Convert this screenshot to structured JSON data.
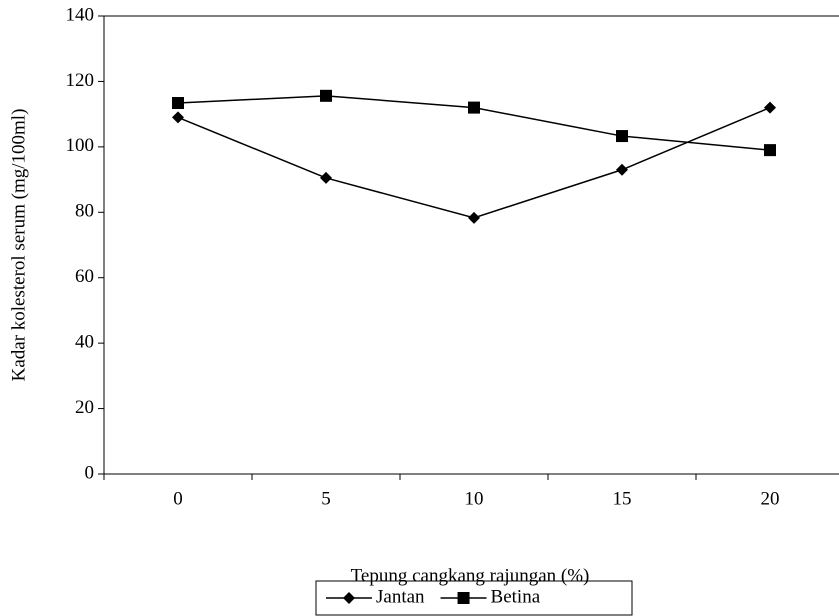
{
  "chart_data": {
    "type": "line",
    "xlabel": "Tepung cangkang rajungan (%)",
    "ylabel": "Kadar kolesterol serum  (mg/100ml)",
    "categories": [
      0,
      5,
      10,
      15,
      20
    ],
    "series": [
      {
        "name": "Jantan",
        "color": "#000000",
        "marker": "diamond",
        "values": [
          109,
          90.5,
          78.3,
          93,
          112
        ]
      },
      {
        "name": "Betina",
        "color": "#000000",
        "marker": "square",
        "values": [
          113.4,
          115.6,
          112,
          103.3,
          99
        ]
      }
    ],
    "ylim": [
      0,
      140
    ],
    "yticks": [
      0,
      20,
      40,
      60,
      80,
      100,
      120,
      140
    ],
    "grid": false,
    "legend": "bottom"
  }
}
